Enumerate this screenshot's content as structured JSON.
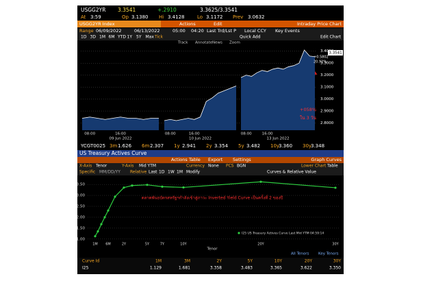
{
  "quote": {
    "ticker": "USGG2YR",
    "last": "3.3541",
    "change": "+.2910",
    "bid_ask": "3.3625/3.3541",
    "time_label": "At",
    "time": "3:59",
    "open_label": "Op",
    "open": "3.1380",
    "high_label": "Hi",
    "high": "3.4128",
    "low_label": "Lo",
    "low": "3.1172",
    "prev_label": "Prev",
    "prev": "3.0632"
  },
  "price_toolbar": {
    "security": "USGG2YR Index",
    "actions": "Actions",
    "edit": "Edit",
    "view": "Intraday Price Chart",
    "range_label": "Range",
    "start": "06/09/2022",
    "end": "06/13/2022",
    "from_time": "05:00",
    "to_time": "04:20",
    "field": "Last Trd/Lst P",
    "currency": "Local CCY",
    "events": "Key Events",
    "periods": [
      "1D",
      "3D",
      "1M",
      "6M",
      "YTD",
      "1Y",
      "5Y",
      "Max",
      "Tick"
    ],
    "tools": [
      "Track",
      "Annotate",
      "News",
      "Zoom"
    ],
    "quick_add": "Quick Add",
    "edit_chart": "Edit Chart"
  },
  "curve_quote": {
    "id": "YCGT0025",
    "tenors": [
      [
        "3m",
        "1.626"
      ],
      [
        "6m",
        "2.307"
      ],
      [
        "1y",
        "2.941"
      ],
      [
        "2y",
        "3.354"
      ],
      [
        "5y",
        "3.482"
      ],
      [
        "10y",
        "3.360"
      ],
      [
        "30y",
        "3.348"
      ]
    ]
  },
  "curve_title": "US Treasury Actives Curve",
  "curve_toolbar": {
    "actions": "Actions",
    "table": "Table",
    "export": "Export",
    "settings": "Settings",
    "graph": "Graph Curves",
    "x_axis_label": "X-Axis",
    "x_axis": "Tenor",
    "y_axis_label": "Y-Axis",
    "y_axis": "Mid YTM",
    "currency_label": "Currency",
    "currency": "None",
    "pcs_label": "PCS",
    "pcs": "BGN",
    "lower_label": "Lower Chart",
    "lower": "Table",
    "specific": "Specific",
    "date": "MM/DD/YY",
    "relative": "Relative",
    "last": "Last",
    "periods": [
      "1D",
      "1W",
      "1M"
    ],
    "modify": "Modify",
    "curves": "Curves & Relative Value"
  },
  "chart_data": [
    {
      "type": "area",
      "color": "#ffffff",
      "fill": "#163a70",
      "sessions": [
        "09 Jun 2022",
        "10 Jun 2022",
        "13 Jun 2022"
      ],
      "categories": [
        null,
        "08:00",
        null,
        null,
        null,
        "16:00",
        null,
        null,
        null,
        null,
        null,
        null,
        null,
        "08:00",
        null,
        null,
        null,
        "16:00",
        null,
        null,
        null,
        null,
        null,
        null,
        null,
        null,
        null,
        "08:00",
        null,
        null,
        null,
        "16:00",
        null,
        null,
        null,
        null,
        null,
        null,
        null,
        null,
        null
      ],
      "values": [
        2.84,
        2.85,
        2.84,
        2.83,
        2.84,
        2.85,
        2.84,
        2.84,
        2.83,
        2.84,
        2.84,
        null,
        2.82,
        2.83,
        2.82,
        2.83,
        2.84,
        2.83,
        2.85,
        2.98,
        3.01,
        3.05,
        3.07,
        3.09,
        3.11,
        null,
        3.18,
        3.2,
        3.19,
        3.22,
        3.24,
        3.23,
        3.25,
        3.26,
        3.25,
        3.27,
        3.28,
        3.3,
        3.41,
        3.36,
        3.3541
      ],
      "ylim": [
        2.74,
        3.45
      ],
      "yticks": [
        {
          "value": 2.8,
          "label": "2.8000"
        },
        {
          "value": 2.9,
          "label": "2.9000"
        },
        {
          "value": 3,
          "label": "3.0000"
        },
        {
          "value": 3.1,
          "label": "3.1000"
        },
        {
          "value": 3.2,
          "label": "3.2000"
        },
        {
          "value": 3.3,
          "label": "3.3000"
        },
        {
          "value": 3.4,
          "label": "3.4000"
        }
      ],
      "grid": true,
      "last_label": "3.3541",
      "change_label": "+0.5802",
      "pct_label": "20.92%",
      "annotations": [
        "+058%",
        "ใน 3 วัน"
      ]
    },
    {
      "type": "line",
      "color": "#2ecc40",
      "categories": [
        "1M",
        null,
        null,
        null,
        "6M",
        null,
        "2Y",
        null,
        "5Y",
        "7Y",
        "10Y",
        "20Y",
        "30Y"
      ],
      "values": [
        1.129,
        1.35,
        1.681,
        2.0,
        2.307,
        2.941,
        3.358,
        3.45,
        3.483,
        3.4,
        3.365,
        3.622,
        3.35
      ],
      "ylim": [
        0.9,
        3.85
      ],
      "yticks": [
        {
          "value": 1,
          "label": "1.00"
        },
        {
          "value": 1.5,
          "label": "1.50"
        },
        {
          "value": 2,
          "label": "2.00"
        },
        {
          "value": 2.5,
          "label": "2.50"
        },
        {
          "value": 3,
          "label": "3.00"
        },
        {
          "value": 3.5,
          "label": "3.50"
        }
      ],
      "grid": true,
      "x_label": "Tenor",
      "legend": "I25 US Treasury Actives Curve Last Mid YTM 04:59:14",
      "annotation": "ตลาดพันธบัตรสหรัฐฯกำลังเข้าสู่ภาวะ Inverted Yield Curve เป็นครั้งที่ 2 ของปี"
    }
  ],
  "table": {
    "filters": [
      "All Tenors",
      "Key Tenors"
    ],
    "header": [
      "Curve Id",
      "1M",
      "3M",
      "2Y",
      "5Y",
      "10Y",
      "20Y",
      "30Y"
    ],
    "rows": [
      [
        "I25",
        "1.129",
        "1.681",
        "3.358",
        "3.483",
        "3.365",
        "3.622",
        "3.350"
      ]
    ]
  }
}
